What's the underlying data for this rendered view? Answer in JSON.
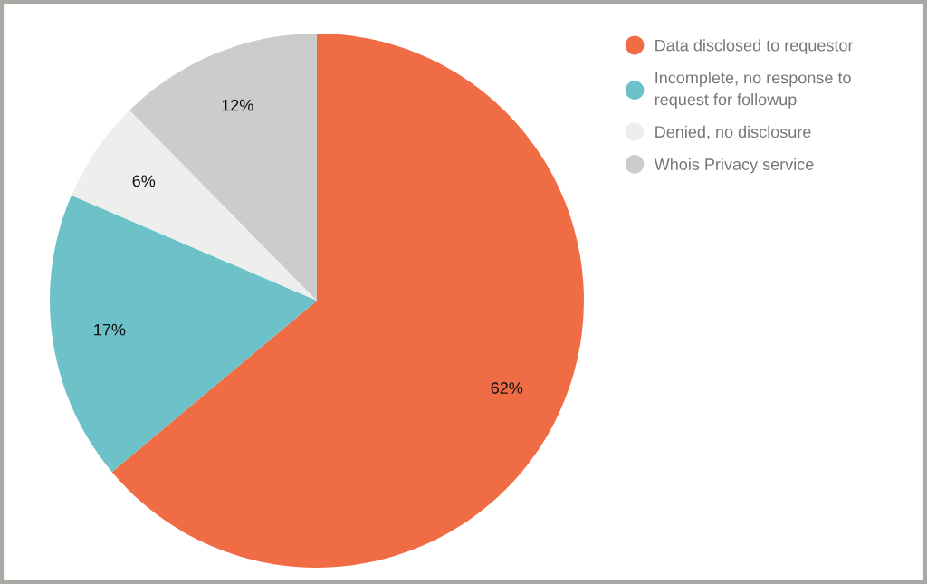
{
  "chart_data": {
    "type": "pie",
    "categories": [
      "Data disclosed to requestor",
      "Incomplete, no response to\nrequest for followup",
      "Denied, no disclosure",
      "Whois Privacy service"
    ],
    "values": [
      62,
      17,
      6,
      12
    ],
    "value_labels": [
      "62%",
      "17%",
      "6%",
      "12%"
    ],
    "colors": [
      "#f06c45",
      "#6dc2c9",
      "#eeeeec",
      "#cccccc"
    ],
    "legend": "top right"
  }
}
